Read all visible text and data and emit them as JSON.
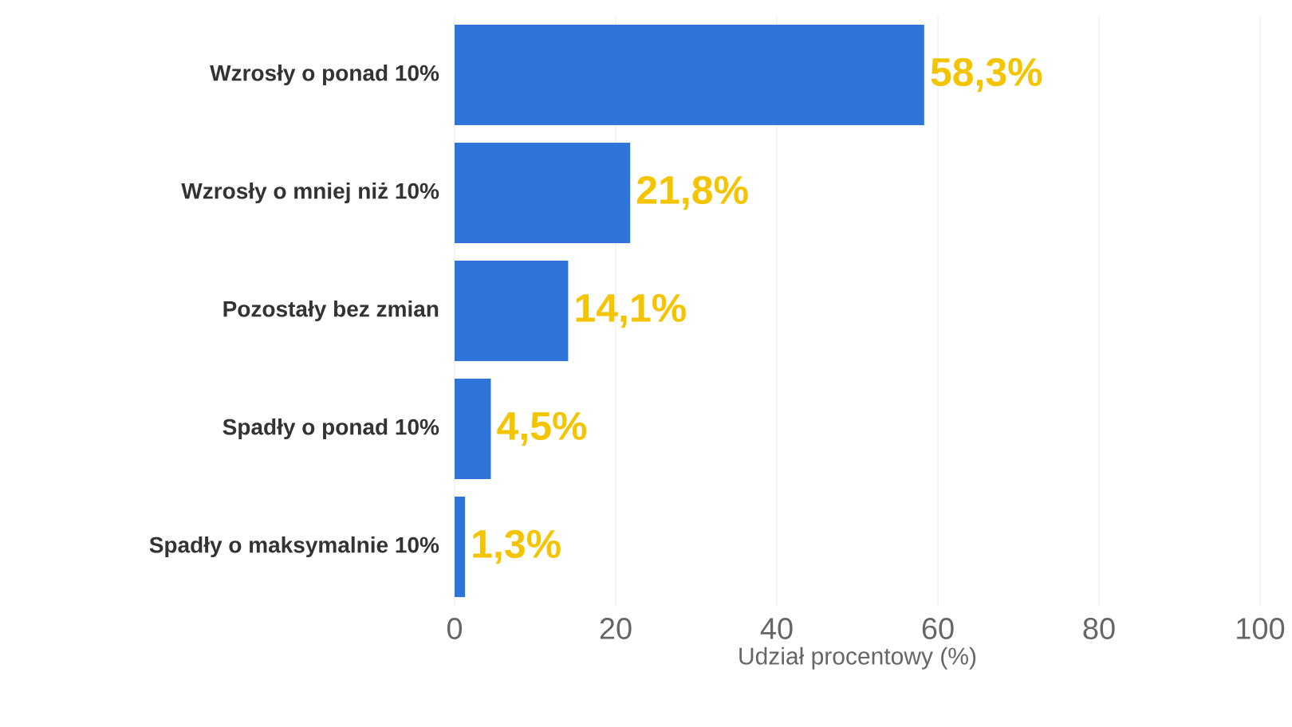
{
  "chart_data": {
    "type": "bar",
    "orientation": "horizontal",
    "xlabel": "Udział procentowy (%)",
    "categories": [
      "Wzrosły o ponad 10%",
      "Wzrosły o mniej niż 10%",
      "Pozostały bez zmian",
      "Spadły o ponad 10%",
      "Spadły o maksymalnie 10%"
    ],
    "values": [
      58.3,
      21.8,
      14.1,
      4.5,
      1.3
    ],
    "value_labels": [
      "58,3%",
      "21,8%",
      "14,1%",
      "4,5%",
      "1,3%"
    ],
    "color": "#2f74d8",
    "xlim": [
      0,
      100
    ],
    "xticks": [
      0,
      20,
      40,
      60,
      80,
      100
    ],
    "grid": "x"
  }
}
